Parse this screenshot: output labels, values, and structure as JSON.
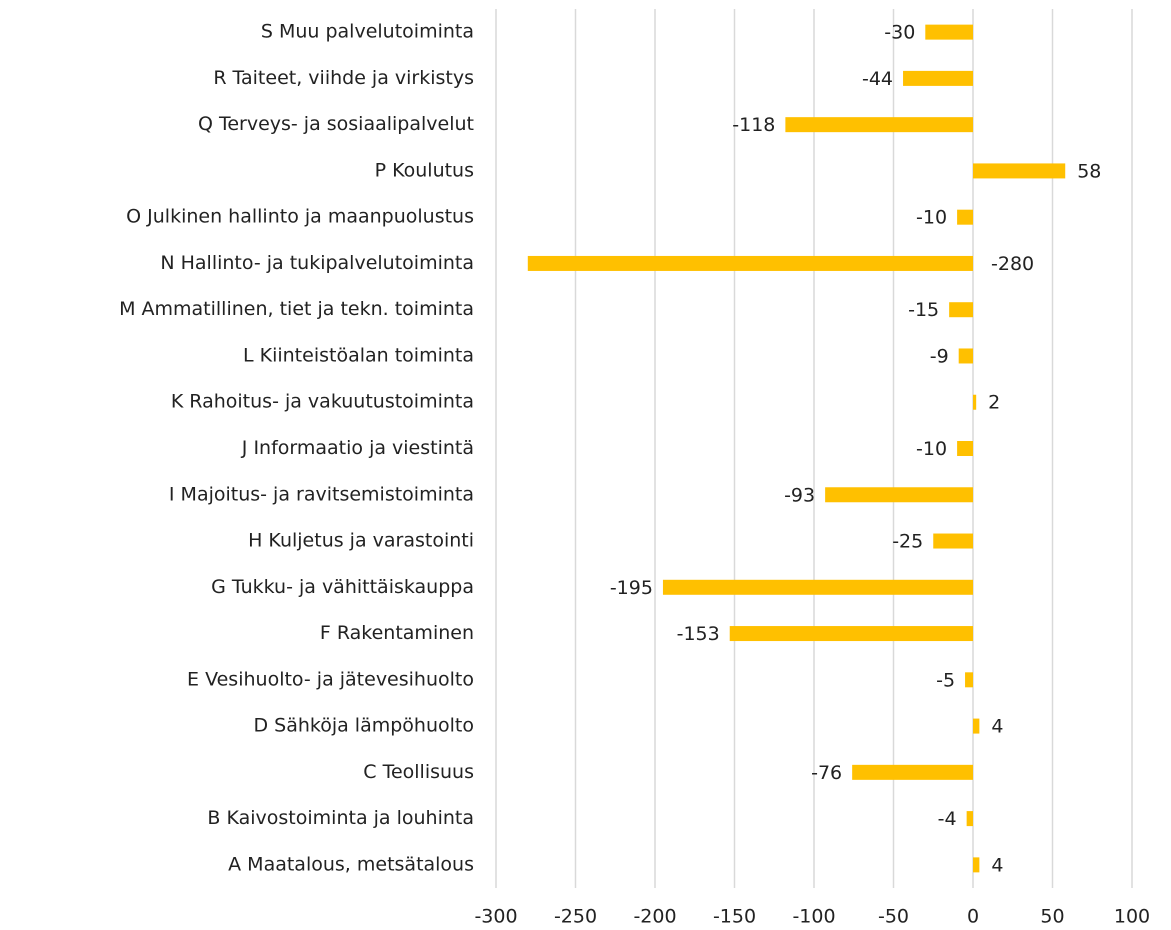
{
  "chart_data": {
    "type": "bar",
    "orientation": "horizontal",
    "categories": [
      "S Muu palvelutoiminta",
      "R Taiteet, viihde ja virkistys",
      "Q Terveys- ja sosiaalipalvelut",
      "P Koulutus",
      "O Julkinen hallinto ja maanpuolustus",
      "N Hallinto- ja tukipalvelutoiminta",
      "M Ammatillinen, tiet ja tekn. toiminta",
      "L Kiinteistöalan toiminta",
      "K Rahoitus- ja vakuutustoiminta",
      "J Informaatio ja viestintä",
      "I Majoitus- ja ravitsemistoiminta",
      "H Kuljetus ja varastointi",
      "G Tukku- ja vähittäiskauppa",
      "F Rakentaminen",
      "E Vesihuolto- ja jätevesihuolto",
      "D Sähköja lämpöhuolto",
      "C Teollisuus",
      "B Kaivostoiminta ja louhinta",
      "A Maatalous, metsätalous"
    ],
    "values": [
      -30,
      -44,
      -118,
      58,
      -10,
      -280,
      -15,
      -9,
      2,
      -10,
      -93,
      -25,
      -195,
      -153,
      -5,
      4,
      -76,
      -4,
      4
    ],
    "color": "#ffc000",
    "xlim": [
      -300,
      100
    ],
    "xticks": [
      -300,
      -250,
      -200,
      -150,
      -100,
      -50,
      0,
      50,
      100
    ],
    "grid": true
  }
}
